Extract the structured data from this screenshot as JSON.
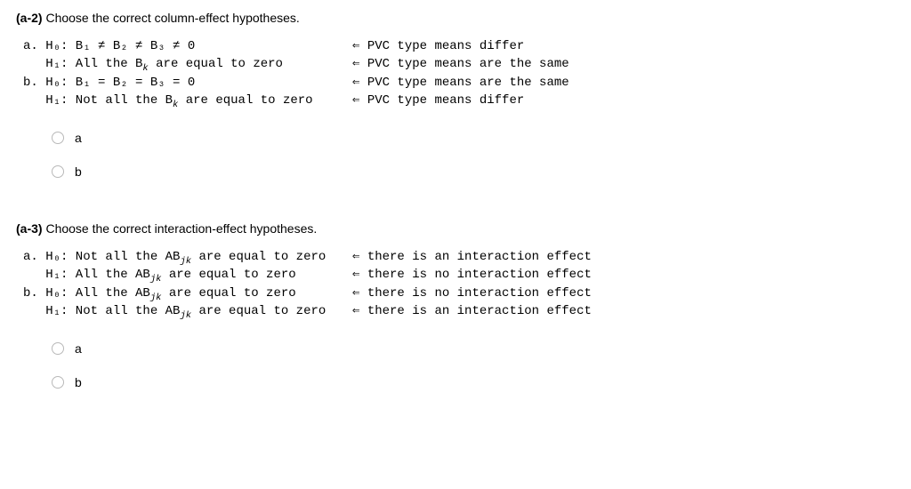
{
  "q1": {
    "label": "(a-2)",
    "prompt": "Choose the correct column-effect hypotheses.",
    "a_h0_left": "a. H₀: B₁ ≠ B₂ ≠ B₃ ≠ 0",
    "a_h0_right": "⇐ PVC type means differ",
    "a_h1_left_prefix": "   H₁: All the B",
    "a_h1_left_sub": "k",
    "a_h1_left_suffix": " are equal to zero",
    "a_h1_right": "⇐ PVC type means are the same",
    "b_h0_left": "b. H₀: B₁ = B₂ = B₃ = 0",
    "b_h0_right": "⇐ PVC type means are the same",
    "b_h1_left_prefix": "   H₁: Not all the B",
    "b_h1_left_sub": "k",
    "b_h1_left_suffix": " are equal to zero",
    "b_h1_right": "⇐ PVC type means differ",
    "opt_a": "a",
    "opt_b": "b"
  },
  "q2": {
    "label": "(a-3)",
    "prompt": "Choose the correct interaction-effect hypotheses.",
    "a_h0_left_prefix": "a. H₀: Not all the AB",
    "a_h0_left_sub": "jk",
    "a_h0_left_suffix": " are equal to zero",
    "a_h0_right": "⇐ there is an interaction effect",
    "a_h1_left_prefix": "   H₁: All the AB",
    "a_h1_left_sub": "jk",
    "a_h1_left_suffix": " are equal to zero",
    "a_h1_right": "⇐ there is no interaction effect",
    "b_h0_left_prefix": "b. H₀: All the AB",
    "b_h0_left_sub": "jk",
    "b_h0_left_suffix": " are equal to zero",
    "b_h0_right": "⇐ there is no interaction effect",
    "b_h1_left_prefix": "   H₁: Not all the AB",
    "b_h1_left_sub": "jk",
    "b_h1_left_suffix": " are equal to zero",
    "b_h1_right": "⇐ there is an interaction effect",
    "opt_a": "a",
    "opt_b": "b"
  }
}
